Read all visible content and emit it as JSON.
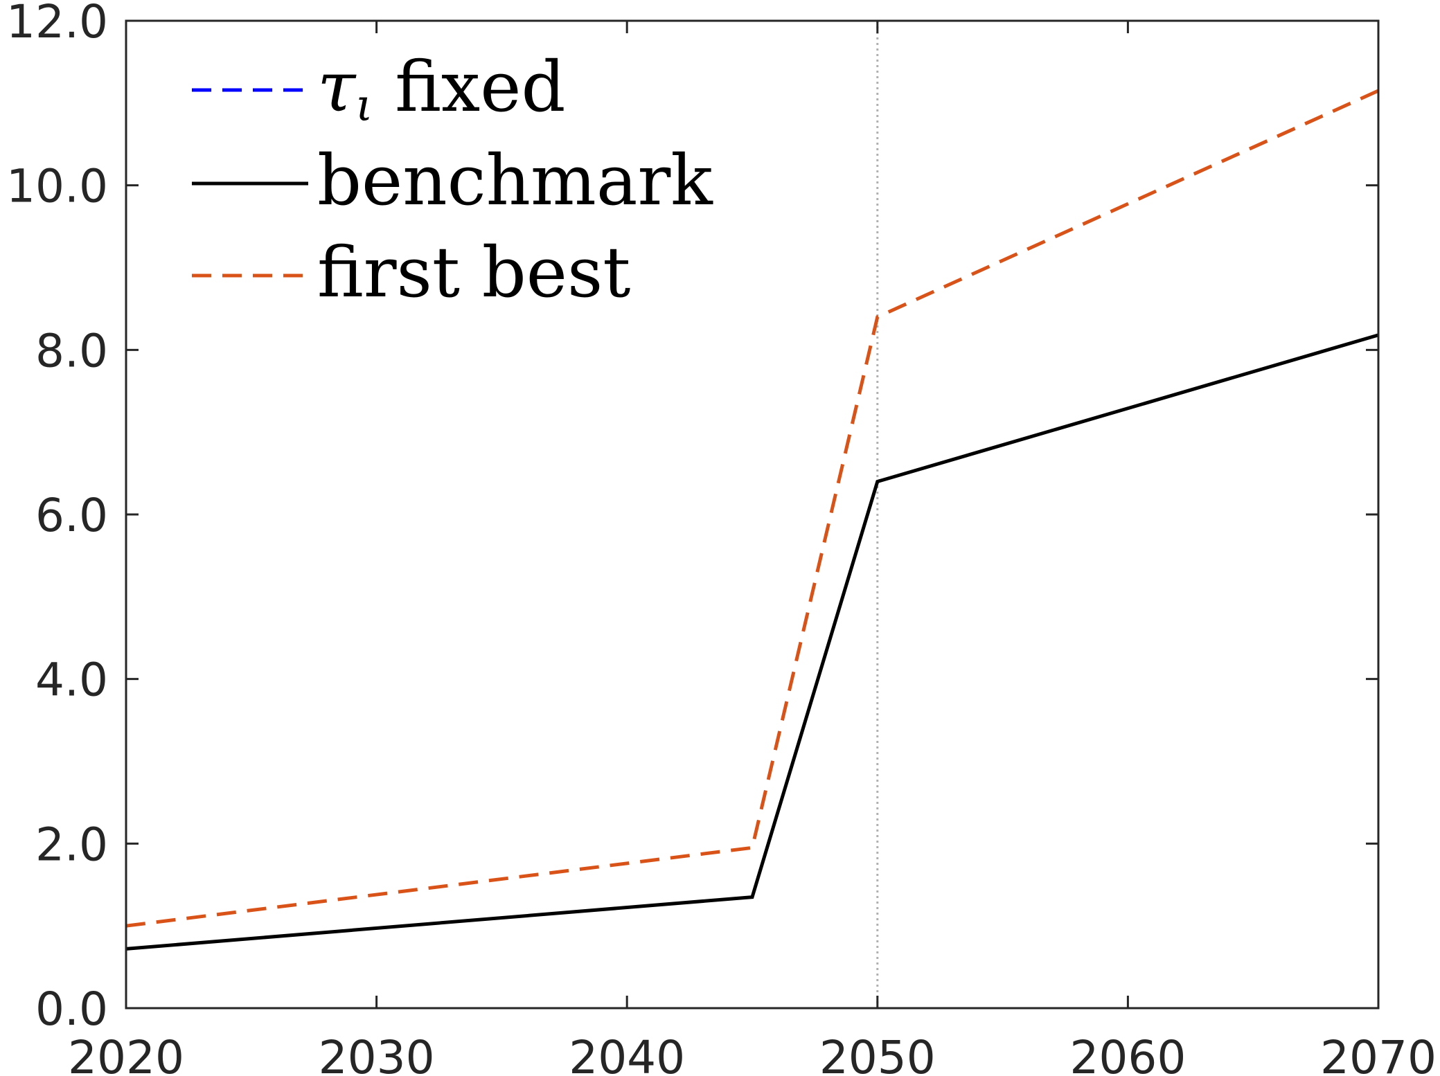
{
  "chart_data": {
    "type": "line",
    "xlim": [
      2020,
      2070
    ],
    "ylim": [
      0,
      12
    ],
    "x_ticks": [
      2020,
      2030,
      2040,
      2050,
      2060,
      2070
    ],
    "x_tick_labels": [
      "2020",
      "2030",
      "2040",
      "2050",
      "2060",
      "2070"
    ],
    "y_ticks": [
      0,
      2,
      4,
      6,
      8,
      10,
      12
    ],
    "y_tick_labels": [
      "0.0",
      "2.0",
      "4.0",
      "6.0",
      "8.0",
      "10.0",
      "12.0"
    ],
    "grid": false,
    "legend_position": "top-left",
    "reference_line": {
      "x": 2050,
      "color": "#b0b0b0",
      "style": "dotted"
    },
    "series": [
      {
        "name": "τι fixed",
        "legend_symbol": "τ",
        "legend_subscript": "ι",
        "legend_suffix": " fixed",
        "color": "#0000ff",
        "style": "dashed",
        "x": [],
        "y": []
      },
      {
        "name": "benchmark",
        "color": "#000000",
        "style": "solid",
        "x": [
          2020,
          2045,
          2050,
          2070
        ],
        "y": [
          0.72,
          1.35,
          6.4,
          8.18
        ]
      },
      {
        "name": "first best",
        "color": "#d95319",
        "style": "dashed",
        "x": [
          2020,
          2045,
          2050,
          2070
        ],
        "y": [
          1.0,
          1.95,
          8.4,
          11.15
        ]
      }
    ]
  }
}
